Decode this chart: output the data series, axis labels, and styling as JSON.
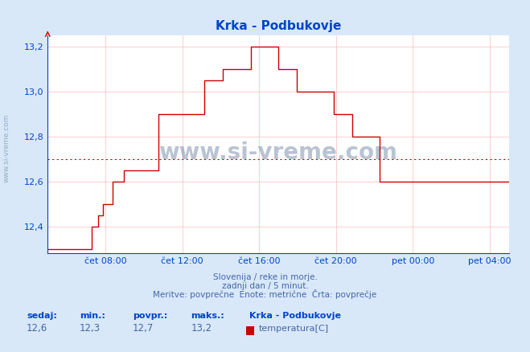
{
  "title": "Krka - Podbukovje",
  "bg_color": "#d8e8f8",
  "plot_bg_color": "#ffffff",
  "line_color": "#cc0000",
  "avg_line_color": "#cc0000",
  "grid_color": "#ffaaaa",
  "xlabel_color": "#0044cc",
  "ylabel_color": "#0044cc",
  "title_color": "#0044cc",
  "footer_color": "#4466aa",
  "ymin": 12.28,
  "ymax": 13.25,
  "yticks": [
    12.4,
    12.6,
    12.8,
    13.0,
    13.2
  ],
  "ytick_labels": [
    "12,4",
    "12,6",
    "12,8",
    "13,0",
    "13,2"
  ],
  "avg_value": 12.7,
  "footer_line1": "Slovenija / reke in morje.",
  "footer_line2": "zadnji dan / 5 minut.",
  "footer_line3": "Meritve: povprečne  Enote: metrične  Črta: povprečje",
  "stat_label1": "sedaj:",
  "stat_label2": "min.:",
  "stat_label3": "povpr.:",
  "stat_label4": "maks.:",
  "stat_val1": "12,6",
  "stat_val2": "12,3",
  "stat_val3": "12,7",
  "stat_val4": "13,2",
  "legend_title": "Krka - Podbukovje",
  "legend_label": "temperatura[C]",
  "watermark": "www.si-vreme.com",
  "watermark_color": "#1a3a6a",
  "left_watermark": "www.si-vreme.com",
  "x_tick_labels": [
    "čet 08:00",
    "čet 12:00",
    "čet 16:00",
    "čet 20:00",
    "pet 00:00",
    "pet 04:00"
  ],
  "x_tick_positions": [
    0.125,
    0.292,
    0.458,
    0.625,
    0.792,
    0.958
  ],
  "time_points": [
    0.0,
    0.01,
    0.02,
    0.03,
    0.04,
    0.05,
    0.06,
    0.07,
    0.08,
    0.09,
    0.095,
    0.1,
    0.11,
    0.12,
    0.13,
    0.14,
    0.155,
    0.165,
    0.175,
    0.19,
    0.21,
    0.24,
    0.26,
    0.28,
    0.31,
    0.34,
    0.36,
    0.38,
    0.4,
    0.42,
    0.44,
    0.46,
    0.48,
    0.5,
    0.52,
    0.54,
    0.56,
    0.58,
    0.6,
    0.62,
    0.64,
    0.66,
    0.68,
    0.7,
    0.72,
    0.74,
    0.76,
    0.78,
    0.8,
    0.82,
    0.84,
    0.86,
    0.88,
    0.9,
    0.92,
    0.94,
    0.96,
    0.98,
    1.0
  ],
  "temp_values": [
    12.3,
    12.3,
    12.3,
    12.3,
    12.3,
    12.3,
    12.3,
    12.3,
    12.3,
    12.3,
    12.4,
    12.4,
    12.45,
    12.5,
    12.5,
    12.6,
    12.6,
    12.65,
    12.65,
    12.65,
    12.65,
    12.9,
    12.9,
    12.9,
    12.9,
    13.05,
    13.05,
    13.1,
    13.1,
    13.1,
    13.2,
    13.2,
    13.2,
    13.1,
    13.1,
    13.0,
    13.0,
    13.0,
    13.0,
    12.9,
    12.9,
    12.8,
    12.8,
    12.8,
    12.6,
    12.6,
    12.6,
    12.6,
    12.6,
    12.6,
    12.6,
    12.6,
    12.6,
    12.6,
    12.6,
    12.6,
    12.6,
    12.6,
    12.6
  ]
}
